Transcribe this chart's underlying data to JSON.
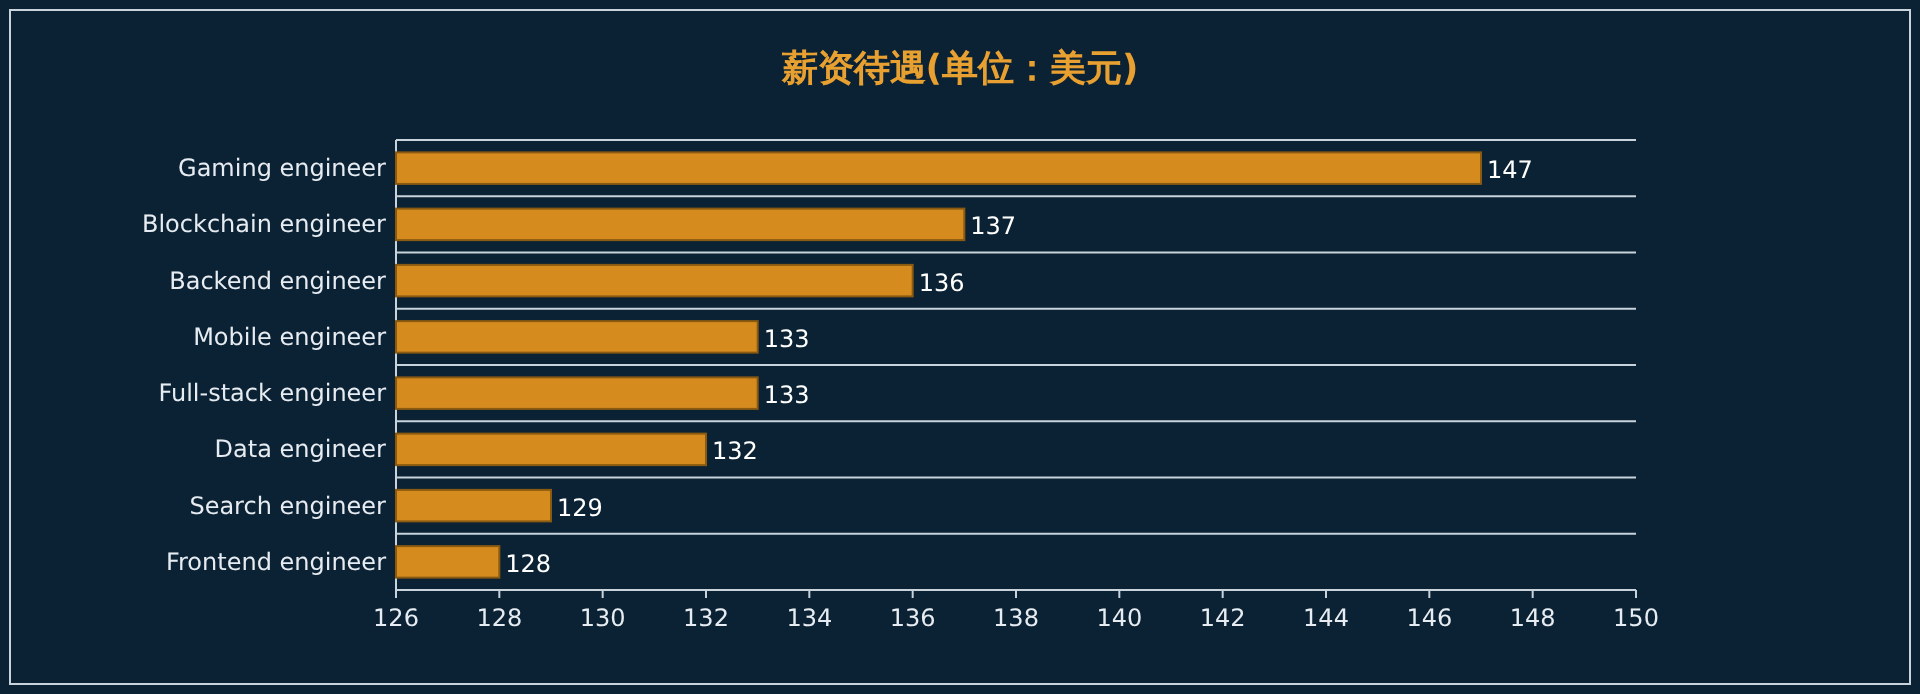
{
  "chart_data": {
    "type": "bar",
    "title": "薪资待遇(单位：美元)",
    "orientation": "horizontal",
    "categories": [
      "Gaming engineer",
      "Blockchain engineer",
      "Backend engineer",
      "Mobile engineer",
      "Full-stack engineer",
      "Data engineer",
      "Search engineer",
      "Frontend engineer"
    ],
    "values": [
      147,
      137,
      136,
      133,
      133,
      132,
      129,
      128
    ],
    "color": "#d68b1f",
    "xlim": [
      126,
      150
    ],
    "xticks": [
      126,
      128,
      130,
      132,
      134,
      136,
      138,
      140,
      142,
      144,
      146,
      148,
      150
    ],
    "grid": "y",
    "data_labels": true
  }
}
